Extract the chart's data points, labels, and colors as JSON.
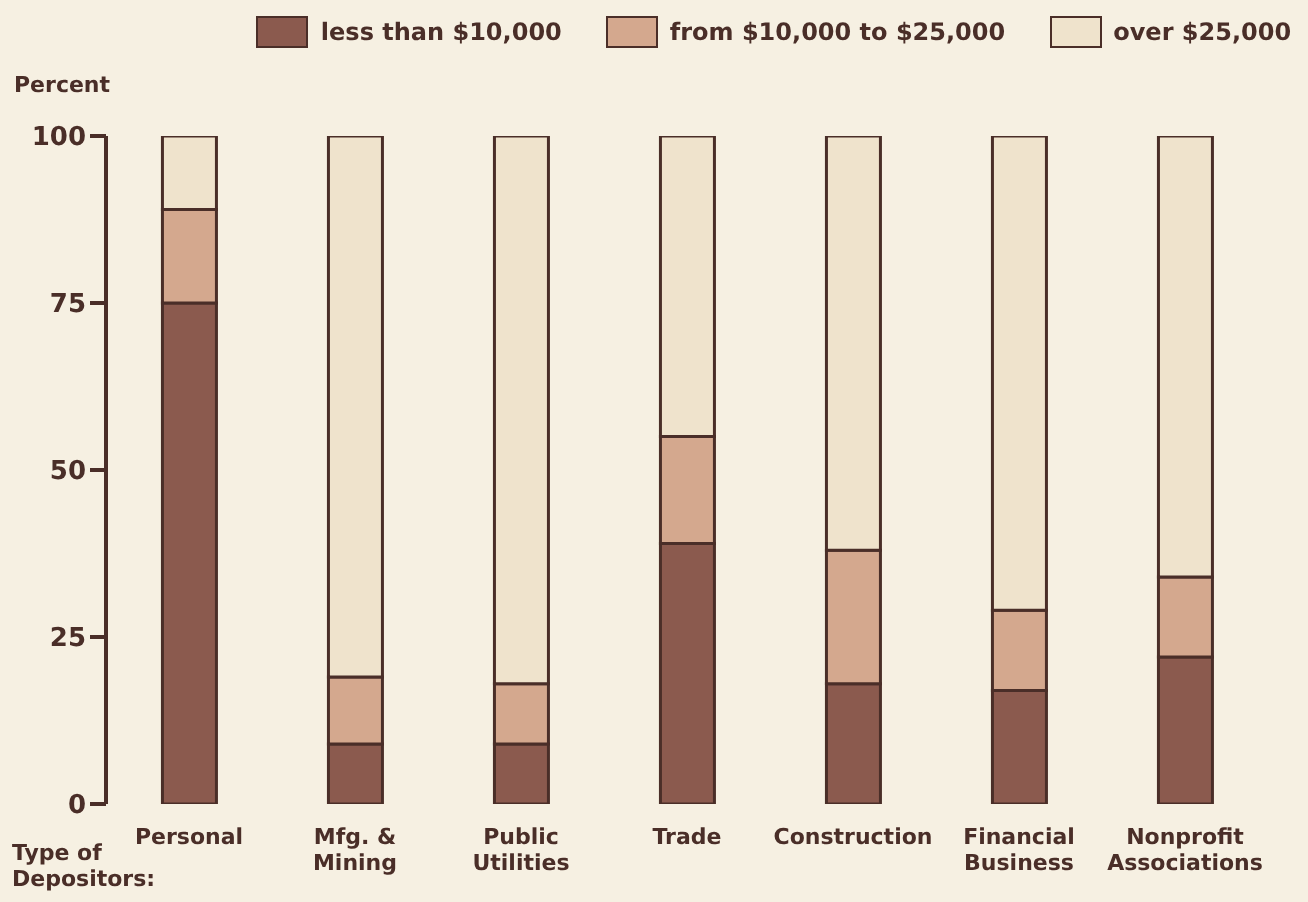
{
  "chart_data": {
    "type": "bar",
    "stacked": true,
    "ylabel": "Percent",
    "categories": [
      "Personal",
      "Mfg. & Mining",
      "Public Utilities",
      "Trade",
      "Construction",
      "Financial Business",
      "Nonprofit Associations"
    ],
    "series": [
      {
        "name": "less than $10,000",
        "color": "#8b5a4e",
        "values": [
          75,
          9,
          9,
          39,
          18,
          17,
          22
        ]
      },
      {
        "name": "from $10,000 to $25,000",
        "color": "#d4a88e",
        "values": [
          14,
          10,
          9,
          16,
          20,
          12,
          12
        ]
      },
      {
        "name": "over $25,000",
        "color": "#efe3cc",
        "values": [
          11,
          81,
          82,
          45,
          62,
          71,
          66
        ]
      }
    ],
    "ylim": [
      0,
      100
    ],
    "yticks": [
      0,
      25,
      50,
      75,
      100
    ],
    "grid": false,
    "legend": "top",
    "annotations": [
      "Type of Depositors:"
    ]
  }
}
